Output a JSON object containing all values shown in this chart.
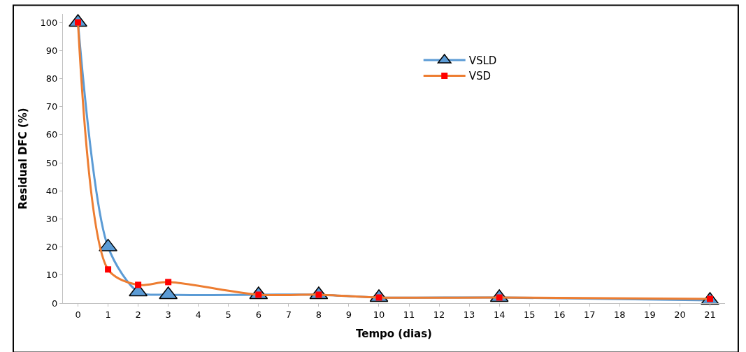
{
  "chart_data": {
    "type": "line",
    "xlabel": "Tempo (dias)",
    "ylabel": "Residual DFC (%)",
    "x": [
      0,
      1,
      2,
      3,
      6,
      8,
      10,
      14,
      21
    ],
    "series": [
      {
        "name": "VSLD",
        "color": "#5b9bd5",
        "marker": "triangle",
        "colors": [
          "#5b9bd5",
          "#5b9bd5",
          "#5b9bd5",
          "#5b9bd5",
          "#5b9bd5",
          "#5b9bd5",
          "#5b9bd5",
          "#5b9bd5",
          "#5b9bd5"
        ],
        "values": [
          100,
          20,
          4,
          3,
          3,
          3,
          2,
          2,
          1
        ]
      },
      {
        "name": "VSD",
        "color": "#ed7d31",
        "marker": "square",
        "colors": [
          "#ff0000",
          "#ff0000",
          "#ff0000",
          "#ff0000",
          "#ff0000",
          "#ff0000",
          "#ff0000",
          "#ff0000",
          "#ff0000"
        ],
        "values": [
          100,
          12,
          6.5,
          7.5,
          3,
          3,
          2,
          2,
          1.5
        ]
      }
    ],
    "xlim": [
      -0.5,
      21.5
    ],
    "xticks": [
      0,
      1,
      2,
      3,
      4,
      5,
      6,
      7,
      8,
      9,
      10,
      11,
      12,
      13,
      14,
      15,
      16,
      17,
      18,
      19,
      20,
      21
    ],
    "ylim": [
      0,
      103
    ],
    "yticks": [
      0,
      10,
      20,
      30,
      40,
      50,
      60,
      70,
      80,
      90,
      100
    ],
    "grid": false,
    "legend": "top",
    "line_style": "solid"
  }
}
